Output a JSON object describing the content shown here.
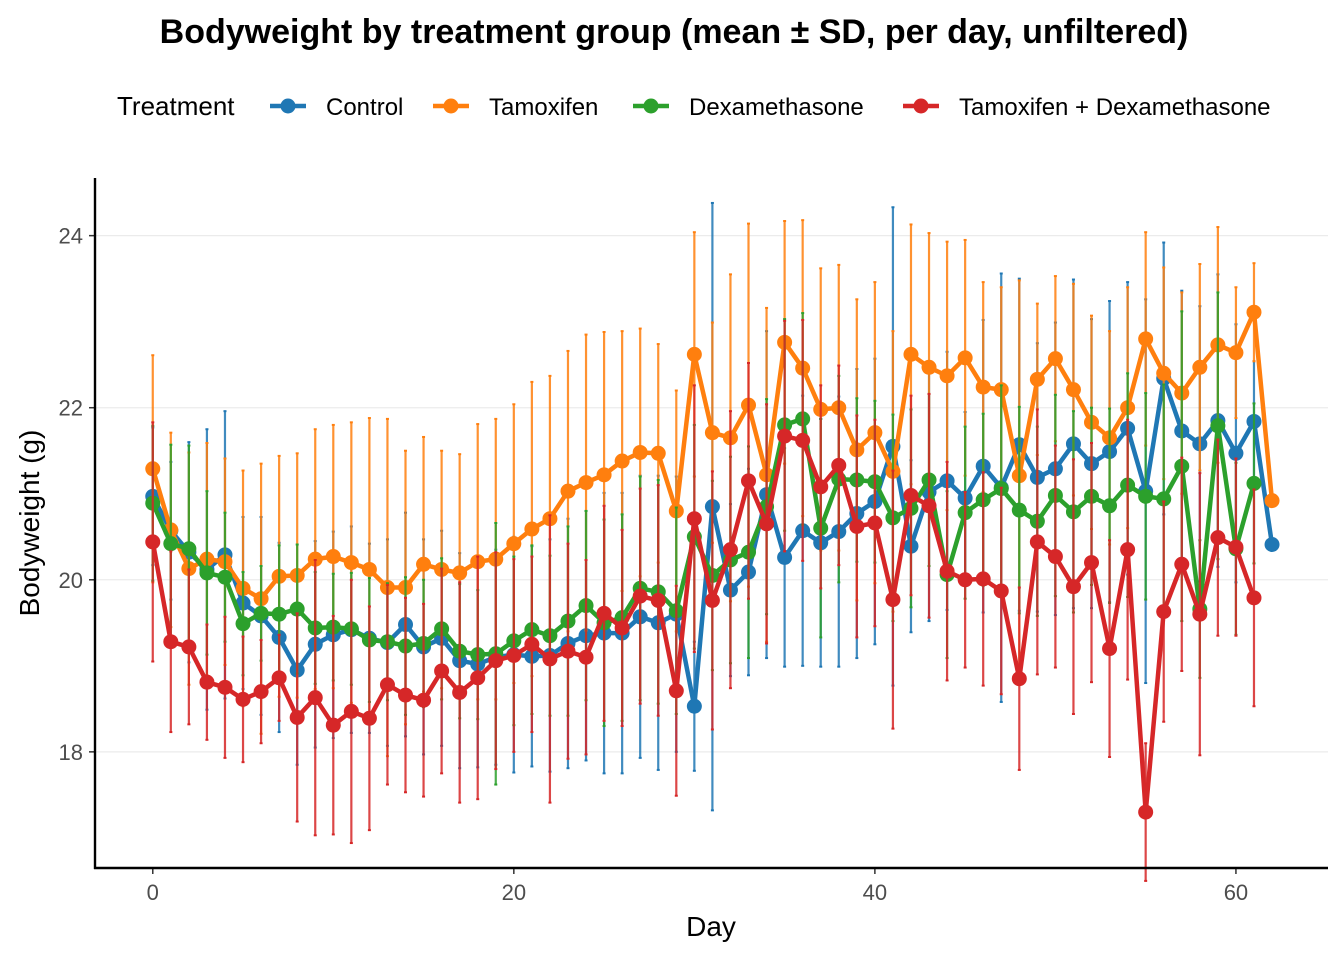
{
  "chart_data": {
    "type": "line",
    "title": "Bodyweight by treatment group (mean ± SD, per day, unfiltered)",
    "xlabel": "Day",
    "ylabel": "Bodyweight (g)",
    "xlim": [
      -3.2,
      65.1
    ],
    "ylim": [
      16.65,
      24.67
    ],
    "x_ticks": [
      0,
      20,
      40,
      60
    ],
    "y_ticks": [
      18,
      20,
      22,
      24
    ],
    "grid": "horizontal major",
    "legend": {
      "title": "Treatment",
      "position": "top"
    },
    "series": [
      {
        "name": "Control",
        "color": "#1f77b4",
        "x": [
          0,
          1,
          2,
          3,
          4,
          5,
          6,
          7,
          8,
          9,
          10,
          11,
          12,
          13,
          14,
          15,
          16,
          17,
          18,
          19,
          20,
          21,
          22,
          23,
          24,
          25,
          26,
          27,
          28,
          29,
          30,
          31,
          32,
          33,
          34,
          35,
          36,
          37,
          38,
          39,
          40,
          41,
          42,
          43,
          44,
          45,
          46,
          47,
          48,
          49,
          50,
          51,
          52,
          53,
          54,
          55,
          56,
          57,
          58,
          59,
          60,
          61,
          62
        ],
        "mean": [
          20.97,
          20.57,
          20.32,
          20.12,
          20.29,
          19.73,
          19.58,
          19.33,
          18.95,
          19.25,
          19.36,
          19.42,
          19.32,
          19.27,
          19.48,
          19.22,
          19.32,
          19.06,
          19.02,
          19.1,
          19.13,
          19.11,
          19.12,
          19.26,
          19.35,
          19.38,
          19.38,
          19.57,
          19.5,
          19.6,
          18.53,
          20.85,
          19.88,
          20.09,
          20.99,
          20.26,
          20.57,
          20.43,
          20.56,
          20.77,
          20.91,
          21.55,
          20.39,
          21.02,
          21.15,
          20.95,
          21.32,
          21.07,
          21.57,
          21.19,
          21.29,
          21.58,
          21.35,
          21.49,
          21.76,
          21.03,
          22.34,
          21.73,
          21.58,
          21.85,
          21.47,
          21.84,
          20.41
        ],
        "sd": [
          0.8,
          0.8,
          1.28,
          1.63,
          1.67,
          1.0,
          1.15,
          1.1,
          1.1,
          1.2,
          1.2,
          1.2,
          1.1,
          1.2,
          1.3,
          1.25,
          1.25,
          1.25,
          1.2,
          1.25,
          1.37,
          1.28,
          1.35,
          1.45,
          1.45,
          1.63,
          1.63,
          1.64,
          1.71,
          1.6,
          0.75,
          3.53,
          1.0,
          1.2,
          1.9,
          1.27,
          1.57,
          1.44,
          1.57,
          1.68,
          1.66,
          2.78,
          1.0,
          1.5,
          1.5,
          1.0,
          1.7,
          2.49,
          1.93,
          1.56,
          1.7,
          1.91,
          1.68,
          1.75,
          1.7,
          2.23,
          1.58,
          1.63,
          1.6,
          1.7,
          1.5,
          0.7,
          0.0
        ]
      },
      {
        "name": "Tamoxifen",
        "color": "#ff7f0e",
        "x": [
          0,
          1,
          2,
          3,
          4,
          5,
          6,
          7,
          8,
          9,
          10,
          11,
          12,
          13,
          14,
          15,
          16,
          17,
          18,
          19,
          20,
          21,
          22,
          23,
          24,
          25,
          26,
          27,
          28,
          29,
          30,
          31,
          32,
          33,
          34,
          35,
          36,
          37,
          38,
          39,
          40,
          41,
          42,
          43,
          44,
          45,
          46,
          47,
          48,
          49,
          50,
          51,
          52,
          53,
          54,
          55,
          56,
          57,
          58,
          59,
          60,
          61,
          62
        ],
        "mean": [
          21.29,
          20.58,
          20.13,
          20.24,
          20.21,
          19.9,
          19.78,
          20.04,
          20.05,
          20.24,
          20.27,
          20.2,
          20.12,
          19.91,
          19.91,
          20.18,
          20.12,
          20.08,
          20.21,
          20.24,
          20.42,
          20.59,
          20.71,
          21.03,
          21.13,
          21.22,
          21.38,
          21.48,
          21.47,
          20.8,
          22.62,
          21.71,
          21.65,
          22.03,
          21.22,
          22.76,
          22.46,
          21.98,
          22.0,
          21.51,
          21.71,
          21.26,
          22.62,
          22.47,
          22.37,
          22.58,
          22.24,
          22.21,
          21.21,
          22.33,
          22.57,
          22.21,
          21.83,
          21.65,
          22.0,
          22.8,
          22.4,
          22.17,
          22.47,
          22.73,
          22.64,
          23.11,
          20.92
        ],
        "sd": [
          1.32,
          1.13,
          1.35,
          1.35,
          1.2,
          1.37,
          1.57,
          1.4,
          1.42,
          1.51,
          1.53,
          1.63,
          1.76,
          1.96,
          1.59,
          1.48,
          1.38,
          1.38,
          1.6,
          1.63,
          1.62,
          1.71,
          1.66,
          1.63,
          1.72,
          1.66,
          1.51,
          1.44,
          1.27,
          1.4,
          1.42,
          1.28,
          1.9,
          2.11,
          1.94,
          1.41,
          1.72,
          1.64,
          1.66,
          1.75,
          1.75,
          1.63,
          1.51,
          1.56,
          1.56,
          1.37,
          1.22,
          1.19,
          2.27,
          0.88,
          0.96,
          1.23,
          1.24,
          1.24,
          1.4,
          1.24,
          1.23,
          1.17,
          1.2,
          1.37,
          0.76,
          0.57,
          0.0
        ]
      },
      {
        "name": "Dexamethasone",
        "color": "#2ca02c",
        "x": [
          0,
          1,
          2,
          3,
          4,
          5,
          6,
          7,
          8,
          9,
          10,
          11,
          12,
          13,
          14,
          15,
          16,
          17,
          18,
          19,
          20,
          21,
          22,
          23,
          24,
          25,
          26,
          27,
          28,
          29,
          30,
          31,
          32,
          33,
          34,
          35,
          36,
          37,
          38,
          39,
          40,
          41,
          42,
          43,
          44,
          45,
          46,
          47,
          48,
          49,
          50,
          51,
          52,
          53,
          54,
          55,
          56,
          57,
          58,
          59,
          60,
          61
        ],
        "mean": [
          20.89,
          20.42,
          20.36,
          20.08,
          20.03,
          19.49,
          19.61,
          19.6,
          19.66,
          19.44,
          19.45,
          19.43,
          19.3,
          19.28,
          19.23,
          19.26,
          19.43,
          19.17,
          19.13,
          19.14,
          19.29,
          19.42,
          19.35,
          19.52,
          19.7,
          19.5,
          19.56,
          19.9,
          19.86,
          19.64,
          20.5,
          20.05,
          20.23,
          20.32,
          20.85,
          21.8,
          21.87,
          20.6,
          21.17,
          21.16,
          21.14,
          20.72,
          20.83,
          21.16,
          20.06,
          20.78,
          20.93,
          21.06,
          20.81,
          20.68,
          20.98,
          20.79,
          20.97,
          20.86,
          21.1,
          20.97,
          20.94,
          21.32,
          19.66,
          21.79,
          20.36,
          21.12
        ],
        "sd": [
          0.9,
          1.15,
          1.2,
          0.95,
          0.75,
          0.6,
          0.55,
          0.8,
          0.75,
          0.65,
          0.62,
          0.65,
          0.72,
          0.68,
          0.8,
          0.74,
          0.82,
          0.78,
          0.75,
          1.52,
          0.98,
          0.98,
          0.93,
          1.1,
          1.1,
          1.2,
          1.2,
          1.3,
          1.3,
          1.2,
          1.3,
          1.1,
          1.2,
          1.23,
          1.25,
          1.23,
          1.23,
          1.27,
          1.2,
          0.95,
          0.94,
          1.2,
          1.15,
          1.0,
          0.97,
          1.0,
          1.0,
          1.2,
          1.2,
          1.1,
          1.17,
          1.17,
          1.03,
          1.13,
          1.3,
          1.2,
          1.33,
          1.8,
          0.8,
          1.55,
          1.0,
          0.93
        ]
      },
      {
        "name": "Tamoxifen + Dexamethasone",
        "color": "#d62728",
        "x": [
          0,
          1,
          2,
          3,
          4,
          5,
          6,
          7,
          8,
          9,
          10,
          11,
          12,
          13,
          14,
          15,
          16,
          17,
          18,
          19,
          20,
          21,
          22,
          23,
          24,
          25,
          26,
          27,
          28,
          29,
          30,
          31,
          32,
          33,
          34,
          35,
          36,
          37,
          38,
          39,
          40,
          41,
          42,
          43,
          44,
          45,
          46,
          47,
          48,
          49,
          50,
          51,
          52,
          53,
          54,
          55,
          56,
          57,
          58,
          59,
          60,
          61
        ],
        "mean": [
          20.44,
          19.28,
          19.22,
          18.81,
          18.75,
          18.61,
          18.7,
          18.86,
          18.4,
          18.63,
          18.31,
          18.47,
          18.39,
          18.78,
          18.66,
          18.6,
          18.94,
          18.69,
          18.86,
          19.06,
          19.12,
          19.25,
          19.08,
          19.17,
          19.1,
          19.61,
          19.44,
          19.81,
          19.76,
          18.71,
          20.71,
          19.76,
          20.35,
          21.15,
          20.65,
          21.67,
          21.62,
          21.08,
          21.33,
          20.62,
          20.66,
          19.77,
          20.98,
          20.86,
          20.1,
          20.0,
          20.01,
          19.87,
          18.85,
          20.44,
          20.27,
          19.92,
          20.2,
          19.2,
          20.35,
          17.3,
          19.63,
          20.18,
          19.6,
          20.49,
          20.38,
          19.79
        ],
        "sd": [
          1.39,
          1.05,
          0.9,
          0.67,
          0.82,
          0.73,
          0.6,
          0.5,
          1.21,
          1.6,
          1.27,
          1.53,
          1.3,
          1.16,
          1.13,
          1.12,
          1.19,
          1.28,
          1.41,
          1.26,
          1.12,
          1.02,
          1.67,
          1.25,
          1.13,
          1.25,
          1.14,
          1.25,
          1.34,
          1.22,
          1.55,
          1.5,
          1.61,
          1.37,
          1.39,
          1.34,
          1.4,
          1.18,
          1.16,
          1.29,
          1.2,
          1.5,
          1.16,
          1.3,
          1.27,
          1.02,
          1.24,
          1.2,
          1.06,
          1.54,
          1.29,
          1.48,
          1.39,
          1.26,
          1.51,
          0.8,
          1.28,
          1.24,
          1.64,
          1.14,
          1.03,
          1.26
        ]
      }
    ]
  }
}
